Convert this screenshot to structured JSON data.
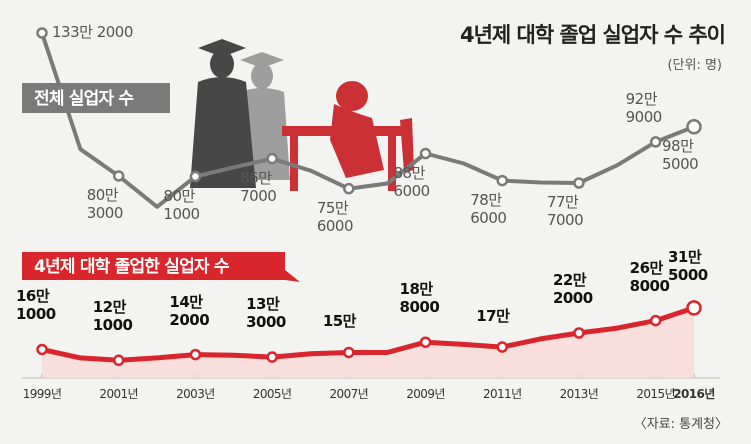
{
  "chart_data": {
    "type": "line",
    "title": "4년제 대학 졸업 실업자 수 추이",
    "unit": "(단위: 명)",
    "source": "〈자료: 통계청〉",
    "categories": [
      "1999년",
      null,
      "2001년",
      null,
      "2003년",
      null,
      "2005년",
      null,
      "2007년",
      null,
      "2009년",
      null,
      "2011년",
      null,
      "2013년",
      null,
      "2015년",
      "2016년"
    ],
    "series": [
      {
        "name": "전체 실업자 수",
        "color": "#7a7a7a",
        "values": [
          1332000,
          902000,
          803000,
          689000,
          801000,
          835000,
          867000,
          823000,
          756000,
          775000,
          886000,
          849000,
          786000,
          779000,
          777000,
          843000,
          929000,
          985000
        ],
        "value_labels": [
          "133만 2000",
          null,
          "80만 3000",
          null,
          "80만 1000",
          null,
          "86만 7000",
          null,
          "75만 6000",
          null,
          "88만 6000",
          null,
          "78만 6000",
          null,
          "77만 7000",
          null,
          "92만 9000",
          "98만 5000"
        ]
      },
      {
        "name": "4년제 대학 졸업한 실업자 수",
        "color": "#d8262c",
        "values": [
          161000,
          130000,
          121000,
          130000,
          142000,
          140000,
          133000,
          145000,
          150000,
          150000,
          188000,
          180000,
          170000,
          200000,
          222000,
          240000,
          268000,
          315000
        ],
        "value_labels": [
          "16만 1000",
          null,
          "12만 1000",
          null,
          "14만 2000",
          null,
          "13만 3000",
          null,
          "15만",
          null,
          "18만 8000",
          null,
          "17만",
          null,
          "22만 2000",
          null,
          "26만 8000",
          "31만 5000"
        ]
      }
    ]
  }
}
